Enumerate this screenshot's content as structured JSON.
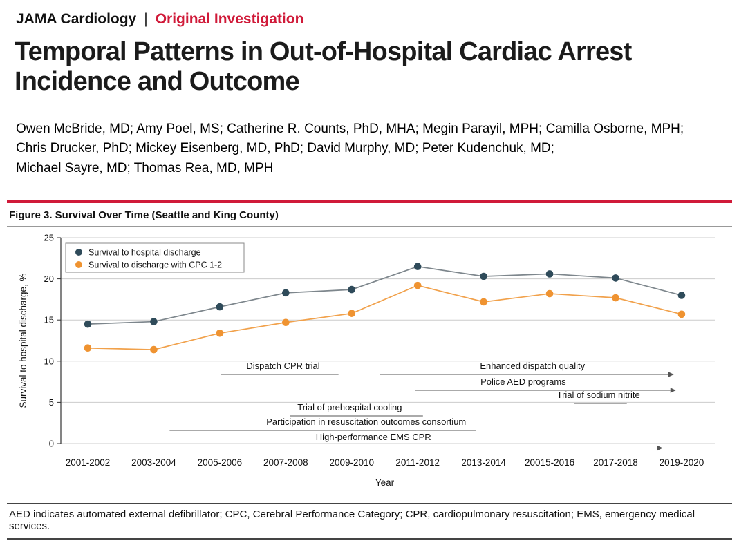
{
  "accent_red": "#d01a39",
  "masthead": {
    "journal": "JAMA Cardiology",
    "divider": "|",
    "article_type": "Original Investigation"
  },
  "title": "Temporal Patterns in Out-of-Hospital Cardiac Arrest\nIncidence and Outcome",
  "authors": "Owen McBride, MD; Amy Poel, MS; Catherine R. Counts, PhD, MHA; Megin Parayil, MPH; Camilla Osborne, MPH;\nChris Drucker, PhD; Mickey Eisenberg, MD, PhD; David Murphy, MD; Peter Kudenchuk, MD;\nMichael Sayre, MD; Thomas Rea, MD, MPH",
  "figure": {
    "caption": "Figure 3. Survival Over Time (Seattle and King County)"
  },
  "footnote": "AED indicates automated external defibrillator; CPC, Cerebral Performance Category; CPR, cardiopulmonary resuscitation; EMS, emergency medical services.",
  "chart_data": {
    "type": "line",
    "title": "Survival Over Time (Seattle and King County)",
    "xlabel": "Year",
    "ylabel": "Survival to hospital discharge, %",
    "ylim": [
      0,
      25
    ],
    "yticks": [
      0,
      5,
      10,
      15,
      20,
      25
    ],
    "grid": true,
    "legend_position": "top-left",
    "categories": [
      "2001-2002",
      "2003-2004",
      "2005-2006",
      "2007-2008",
      "2009-2010",
      "2011-2012",
      "2013-2014",
      "20015-2016",
      "2017-2018",
      "2019-2020"
    ],
    "series": [
      {
        "name": "Survival to hospital discharge",
        "color": "#2f4b5a",
        "line_color": "#7d868c",
        "values": [
          14.5,
          14.8,
          16.6,
          18.3,
          18.7,
          21.5,
          20.3,
          20.6,
          20.1,
          18.0
        ]
      },
      {
        "name": "Survival to discharge with CPC 1-2",
        "color": "#ef9331",
        "line_color": "#f1a14b",
        "values": [
          11.6,
          11.4,
          13.4,
          14.7,
          15.8,
          19.2,
          17.2,
          18.2,
          17.7,
          15.7
        ]
      }
    ],
    "annotations": [
      {
        "label": "Dispatch CPR trial",
        "text_idx": 2.96,
        "text_value": 9.06,
        "x1_idx": 2.02,
        "x2_idx": 3.8,
        "line_value": 8.39,
        "arrow": false
      },
      {
        "label": "Enhanced dispatch quality",
        "text_idx": 6.74,
        "text_value": 9.06,
        "x1_idx": 4.43,
        "x2_idx": 8.8,
        "line_value": 8.39,
        "arrow": true
      },
      {
        "label": "Police AED programs",
        "text_idx": 6.6,
        "text_value": 7.13,
        "x1_idx": 4.96,
        "x2_idx": 8.83,
        "line_value": 6.46,
        "arrow": true
      },
      {
        "label": "Trial of sodium nitrite",
        "text_idx": 7.74,
        "text_value": 5.54,
        "x1_idx": 7.37,
        "x2_idx": 8.17,
        "line_value": 4.87,
        "arrow": false
      },
      {
        "label": "Trial of prehospital cooling",
        "text_idx": 3.97,
        "text_value": 4.03,
        "x1_idx": 3.07,
        "x2_idx": 5.08,
        "line_value": 3.36,
        "arrow": false
      },
      {
        "label": "Participation in resuscitation outcomes consortium",
        "text_idx": 4.22,
        "text_value": 2.27,
        "x1_idx": 1.24,
        "x2_idx": 5.88,
        "line_value": 1.59,
        "arrow": false
      },
      {
        "label": "High-performance EMS CPR",
        "text_idx": 4.33,
        "text_value": 0.42,
        "x1_idx": 0.9,
        "x2_idx": 8.63,
        "line_value": -0.55,
        "arrow": true
      }
    ]
  }
}
